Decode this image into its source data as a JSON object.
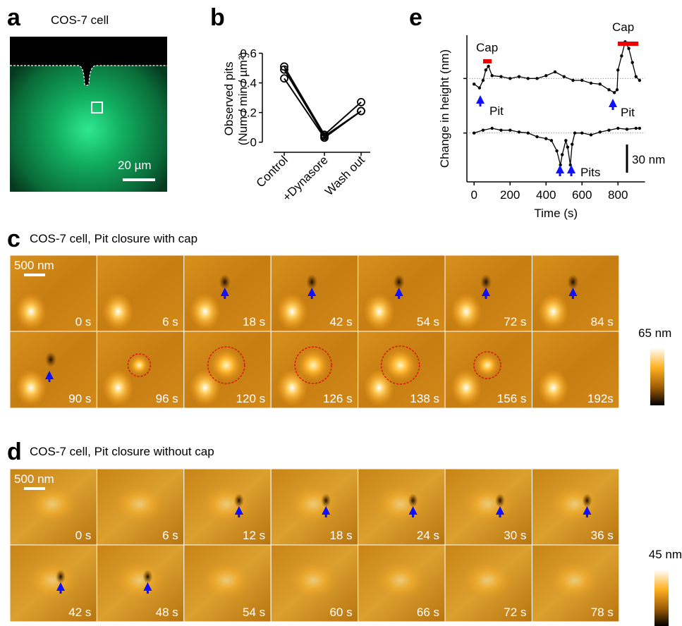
{
  "panels": {
    "a": {
      "letter": "a",
      "title": "COS-7 cell",
      "scale_bar": "20 µm"
    },
    "b": {
      "letter": "b"
    },
    "c": {
      "letter": "c",
      "title": "COS-7 cell, Pit closure with cap",
      "scale_bar": "500 nm",
      "frames": [
        "0 s",
        "6 s",
        "18 s",
        "42 s",
        "54 s",
        "72 s",
        "84 s",
        "90 s",
        "96 s",
        "120 s",
        "126 s",
        "138 s",
        "156 s",
        "192s"
      ],
      "colorbar": "65 nm"
    },
    "d": {
      "letter": "d",
      "title": "COS-7 cell, Pit closure without cap",
      "scale_bar": "500 nm",
      "frames": [
        "0 s",
        "6 s",
        "12 s",
        "18 s",
        "24 s",
        "30 s",
        "36 s",
        "42 s",
        "48 s",
        "54 s",
        "60 s",
        "66 s",
        "72 s",
        "78 s"
      ],
      "colorbar": "45 nm"
    },
    "e": {
      "letter": "e",
      "annotations": [
        "Cap",
        "Pit",
        "Cap",
        "Pit",
        "Pits"
      ]
    }
  },
  "chart_data": [
    {
      "type": "line",
      "ylabel": [
        "Observed pits",
        "(Num / min / µm²)"
      ],
      "categories": [
        "Control",
        "+Dynasore",
        "Wash out"
      ],
      "series": [
        {
          "color": "#000000",
          "values": [
            0.51,
            0.05,
            0.27
          ]
        },
        {
          "color": "#000000",
          "values": [
            0.49,
            0.04,
            0.21
          ]
        },
        {
          "color": "#000000",
          "values": [
            0.43,
            0.03,
            0.21
          ]
        }
      ],
      "ylim": [
        -0.03,
        0.65
      ],
      "yticks": [
        0,
        0.2,
        0.4,
        0.6
      ]
    },
    {
      "type": "trace",
      "xlabel": "Time (s)",
      "ylabel": "Change in height (nm)",
      "series": [
        {
          "color": "#000000",
          "x": [
            0,
            30,
            50,
            65,
            80,
            100,
            150,
            200,
            250,
            300,
            350,
            400,
            450,
            500,
            550,
            600,
            650,
            700,
            750,
            780,
            795,
            800,
            820,
            840,
            860,
            880,
            900,
            920
          ],
          "values": [
            -6,
            -10,
            -2,
            9,
            13,
            3,
            2,
            0,
            2,
            0,
            0,
            3,
            7,
            2,
            -2,
            -2,
            -5,
            -6,
            -12,
            -15,
            -12,
            9,
            24,
            39,
            32,
            17,
            2,
            -2
          ]
        },
        {
          "color": "#000000",
          "x": [
            0,
            50,
            100,
            150,
            200,
            250,
            300,
            350,
            400,
            430,
            460,
            480,
            490,
            510,
            520,
            535,
            545,
            560,
            600,
            650,
            700,
            750,
            800,
            850,
            900,
            920
          ],
          "values": [
            -58,
            -55,
            -53,
            -55,
            -55,
            -57,
            -58,
            -62,
            -64,
            -66,
            -77,
            -92,
            -81,
            -66,
            -73,
            -92,
            -70,
            -58,
            -58,
            -60,
            -57,
            -55,
            -53,
            -54,
            -53,
            -53
          ]
        }
      ],
      "reference_lines": [
        0,
        -58
      ],
      "xlim": [
        -40,
        950
      ],
      "xticks": [
        0,
        200,
        400,
        600,
        800
      ],
      "ylim": [
        -110,
        46
      ],
      "scale_bar": {
        "value": 30,
        "label": "30 nm"
      }
    }
  ]
}
